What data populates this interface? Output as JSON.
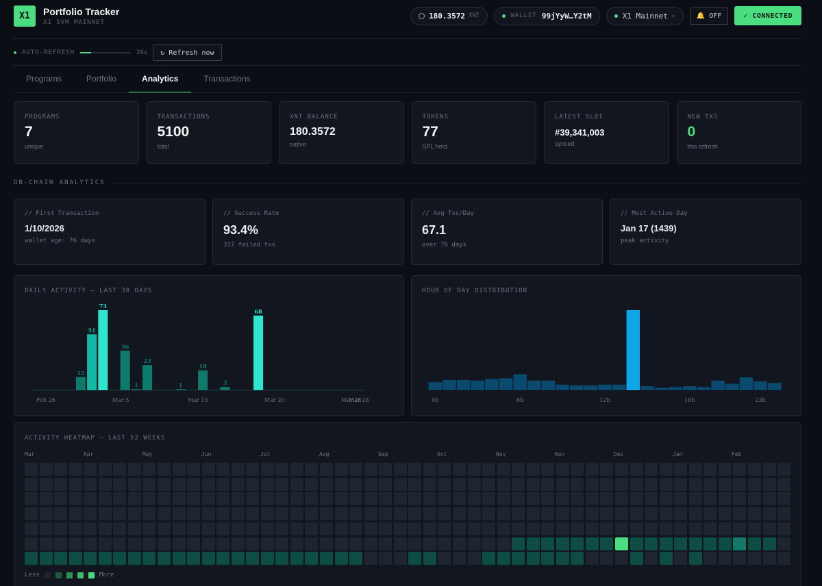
{
  "header": {
    "logo": "X1",
    "title": "Portfolio Tracker",
    "subtitle": "X1 SVM MAINNET",
    "balance_icon": "coin-icon",
    "balance_value": "180.3572",
    "balance_unit": "XNT",
    "wallet_label": "WALLET",
    "wallet_value": "99jYyW…Y2tM",
    "network": "X1 Mainnet",
    "network_caret": "▾",
    "notify_icon": "bell-icon",
    "notify_label": "OFF",
    "connect_label": "✓ CONNECTED"
  },
  "refresh": {
    "label": "AUTO-REFRESH",
    "progress": 0.22,
    "countdown": "26s",
    "button_label": "↻ Refresh now"
  },
  "tabs": [
    {
      "label": "Programs",
      "active": false
    },
    {
      "label": "Portfolio",
      "active": false
    },
    {
      "label": "Analytics",
      "active": true
    },
    {
      "label": "Transactions",
      "active": false
    }
  ],
  "stats": [
    {
      "label": "PROGRAMS",
      "value": "7",
      "sub": "unique"
    },
    {
      "label": "TRANSACTIONS",
      "value": "5100",
      "sub": "total"
    },
    {
      "label": "XNT BALANCE",
      "value": "180.3572",
      "sub": "native"
    },
    {
      "label": "TOKENS",
      "value": "77",
      "sub": "SPL held"
    },
    {
      "label": "LATEST SLOT",
      "value": "#39,341,003",
      "sub": "synced"
    },
    {
      "label": "NEW TXS",
      "value": "0",
      "sub": "this refresh"
    }
  ],
  "section_title": "ON-CHAIN ANALYTICS",
  "analytics": [
    {
      "label": "// First Transaction",
      "value": "1/10/2026",
      "sub": "wallet age: 76 days"
    },
    {
      "label": "// Success Rate",
      "value": "93.4%",
      "sub": "337 failed txs"
    },
    {
      "label": "// Avg Txs/Day",
      "value": "67.1",
      "sub": "over 76 days"
    },
    {
      "label": "// Most Active Day",
      "value": "Jan 17 (1439)",
      "sub": "peak activity"
    }
  ],
  "colors": {
    "accent": "#4ade80",
    "teal_dark": "#0d7a6b",
    "teal_mid": "#14b8a6",
    "teal_bright": "#2ee6cf",
    "blue_bar": "#0a4a6e",
    "blue_peak": "#0ea5e9",
    "hm_empty": "#1e2430",
    "hm_l1": "#0d4d44",
    "hm_l2": "#13786a",
    "hm_l3": "#4ade80"
  },
  "chart_data": [
    {
      "type": "bar",
      "title": "DAILY ACTIVITY — LAST 30 DAYS",
      "x_tick_labels": [
        "Feb 26",
        "Mar 5",
        "Mar 13",
        "Mar 20",
        "Mar 28",
        "Mar 28"
      ],
      "values": [
        0,
        0,
        0,
        0,
        12,
        51,
        73,
        0,
        36,
        1,
        23,
        0,
        0,
        1,
        0,
        18,
        0,
        3,
        0,
        0,
        68,
        0,
        0,
        0,
        0,
        0,
        0,
        0,
        0,
        0
      ],
      "data_labels": [
        "",
        "",
        "",
        "",
        "12",
        "51",
        "73",
        "",
        "36",
        "1",
        "23",
        "",
        "",
        "1",
        "",
        "18",
        "",
        "3",
        "",
        "",
        "68",
        "",
        "",
        "",
        "",
        "",
        "",
        "",
        "",
        ""
      ]
    },
    {
      "type": "bar",
      "title": "HOUR OF DAY DISTRIBUTION",
      "x_tick_labels": [
        "0h",
        "6h",
        "12h",
        "18h",
        "23h"
      ],
      "values": [
        10,
        13,
        13,
        12,
        14,
        15,
        20,
        12,
        12,
        7,
        6,
        6,
        7,
        7,
        100,
        5,
        3,
        4,
        5,
        4,
        12,
        8,
        16,
        11,
        9
      ]
    }
  ],
  "heatmap": {
    "title": "ACTIVITY HEATMAP — LAST 52 WEEKS",
    "months": [
      "Mar",
      "Apr",
      "May",
      "Jun",
      "Jul",
      "Aug",
      "Sep",
      "Oct",
      "Nov",
      "Nov",
      "Dec",
      "Jan",
      "Feb"
    ],
    "legend_less": "Less",
    "legend_more": "More",
    "levels_by_week_day": [
      [
        0,
        0,
        0,
        0,
        0,
        0,
        1
      ],
      [
        0,
        0,
        0,
        0,
        0,
        0,
        1
      ],
      [
        0,
        0,
        0,
        0,
        0,
        0,
        1
      ],
      [
        0,
        0,
        0,
        0,
        0,
        0,
        1
      ],
      [
        0,
        0,
        0,
        0,
        0,
        0,
        1
      ],
      [
        0,
        0,
        0,
        0,
        0,
        0,
        1
      ],
      [
        0,
        0,
        0,
        0,
        0,
        0,
        1
      ],
      [
        0,
        0,
        0,
        0,
        0,
        0,
        1
      ],
      [
        0,
        0,
        0,
        0,
        0,
        0,
        1
      ],
      [
        0,
        0,
        0,
        0,
        0,
        0,
        1
      ],
      [
        0,
        0,
        0,
        0,
        0,
        0,
        1
      ],
      [
        0,
        0,
        0,
        0,
        0,
        0,
        1
      ],
      [
        0,
        0,
        0,
        0,
        0,
        0,
        1
      ],
      [
        0,
        0,
        0,
        0,
        0,
        0,
        1
      ],
      [
        0,
        0,
        0,
        0,
        0,
        0,
        1
      ],
      [
        0,
        0,
        0,
        0,
        0,
        0,
        1
      ],
      [
        0,
        0,
        0,
        0,
        0,
        0,
        1
      ],
      [
        0,
        0,
        0,
        0,
        0,
        0,
        1
      ],
      [
        0,
        0,
        0,
        0,
        0,
        0,
        1
      ],
      [
        0,
        0,
        0,
        0,
        0,
        0,
        1
      ],
      [
        0,
        0,
        0,
        0,
        0,
        0,
        1
      ],
      [
        0,
        0,
        0,
        0,
        0,
        0,
        1
      ],
      [
        0,
        0,
        0,
        0,
        0,
        0,
        1
      ],
      [
        0,
        0,
        0,
        0,
        0,
        0,
        0
      ],
      [
        0,
        0,
        0,
        0,
        0,
        0,
        0
      ],
      [
        0,
        0,
        0,
        0,
        0,
        0,
        0
      ],
      [
        0,
        0,
        0,
        0,
        0,
        0,
        1
      ],
      [
        0,
        0,
        0,
        0,
        0,
        0,
        1
      ],
      [
        0,
        0,
        0,
        0,
        0,
        0,
        0
      ],
      [
        0,
        0,
        0,
        0,
        0,
        0,
        0
      ],
      [
        0,
        0,
        0,
        0,
        0,
        0,
        0
      ],
      [
        0,
        0,
        0,
        0,
        0,
        0,
        1
      ],
      [
        0,
        0,
        0,
        0,
        0,
        0,
        1
      ],
      [
        0,
        0,
        0,
        0,
        0,
        1,
        1
      ],
      [
        0,
        0,
        0,
        0,
        0,
        1,
        1
      ],
      [
        0,
        0,
        0,
        0,
        0,
        1,
        1
      ],
      [
        0,
        0,
        0,
        0,
        0,
        1,
        1
      ],
      [
        0,
        0,
        0,
        0,
        0,
        1,
        1
      ],
      [
        0,
        0,
        0,
        0,
        0,
        1,
        0
      ],
      [
        0,
        0,
        0,
        0,
        0,
        1,
        0
      ],
      [
        0,
        0,
        0,
        0,
        0,
        3,
        0
      ],
      [
        0,
        0,
        0,
        0,
        0,
        1,
        1
      ],
      [
        0,
        0,
        0,
        0,
        0,
        1,
        0
      ],
      [
        0,
        0,
        0,
        0,
        0,
        1,
        1
      ],
      [
        0,
        0,
        0,
        0,
        0,
        1,
        0
      ],
      [
        0,
        0,
        0,
        0,
        0,
        1,
        1
      ],
      [
        0,
        0,
        0,
        0,
        0,
        1,
        0
      ],
      [
        0,
        0,
        0,
        0,
        0,
        1,
        0
      ],
      [
        0,
        0,
        0,
        0,
        0,
        2,
        0
      ],
      [
        0,
        0,
        0,
        0,
        0,
        1,
        0
      ],
      [
        0,
        0,
        0,
        0,
        0,
        1,
        0
      ],
      [
        0,
        0,
        0,
        0,
        0,
        0,
        0
      ]
    ]
  }
}
